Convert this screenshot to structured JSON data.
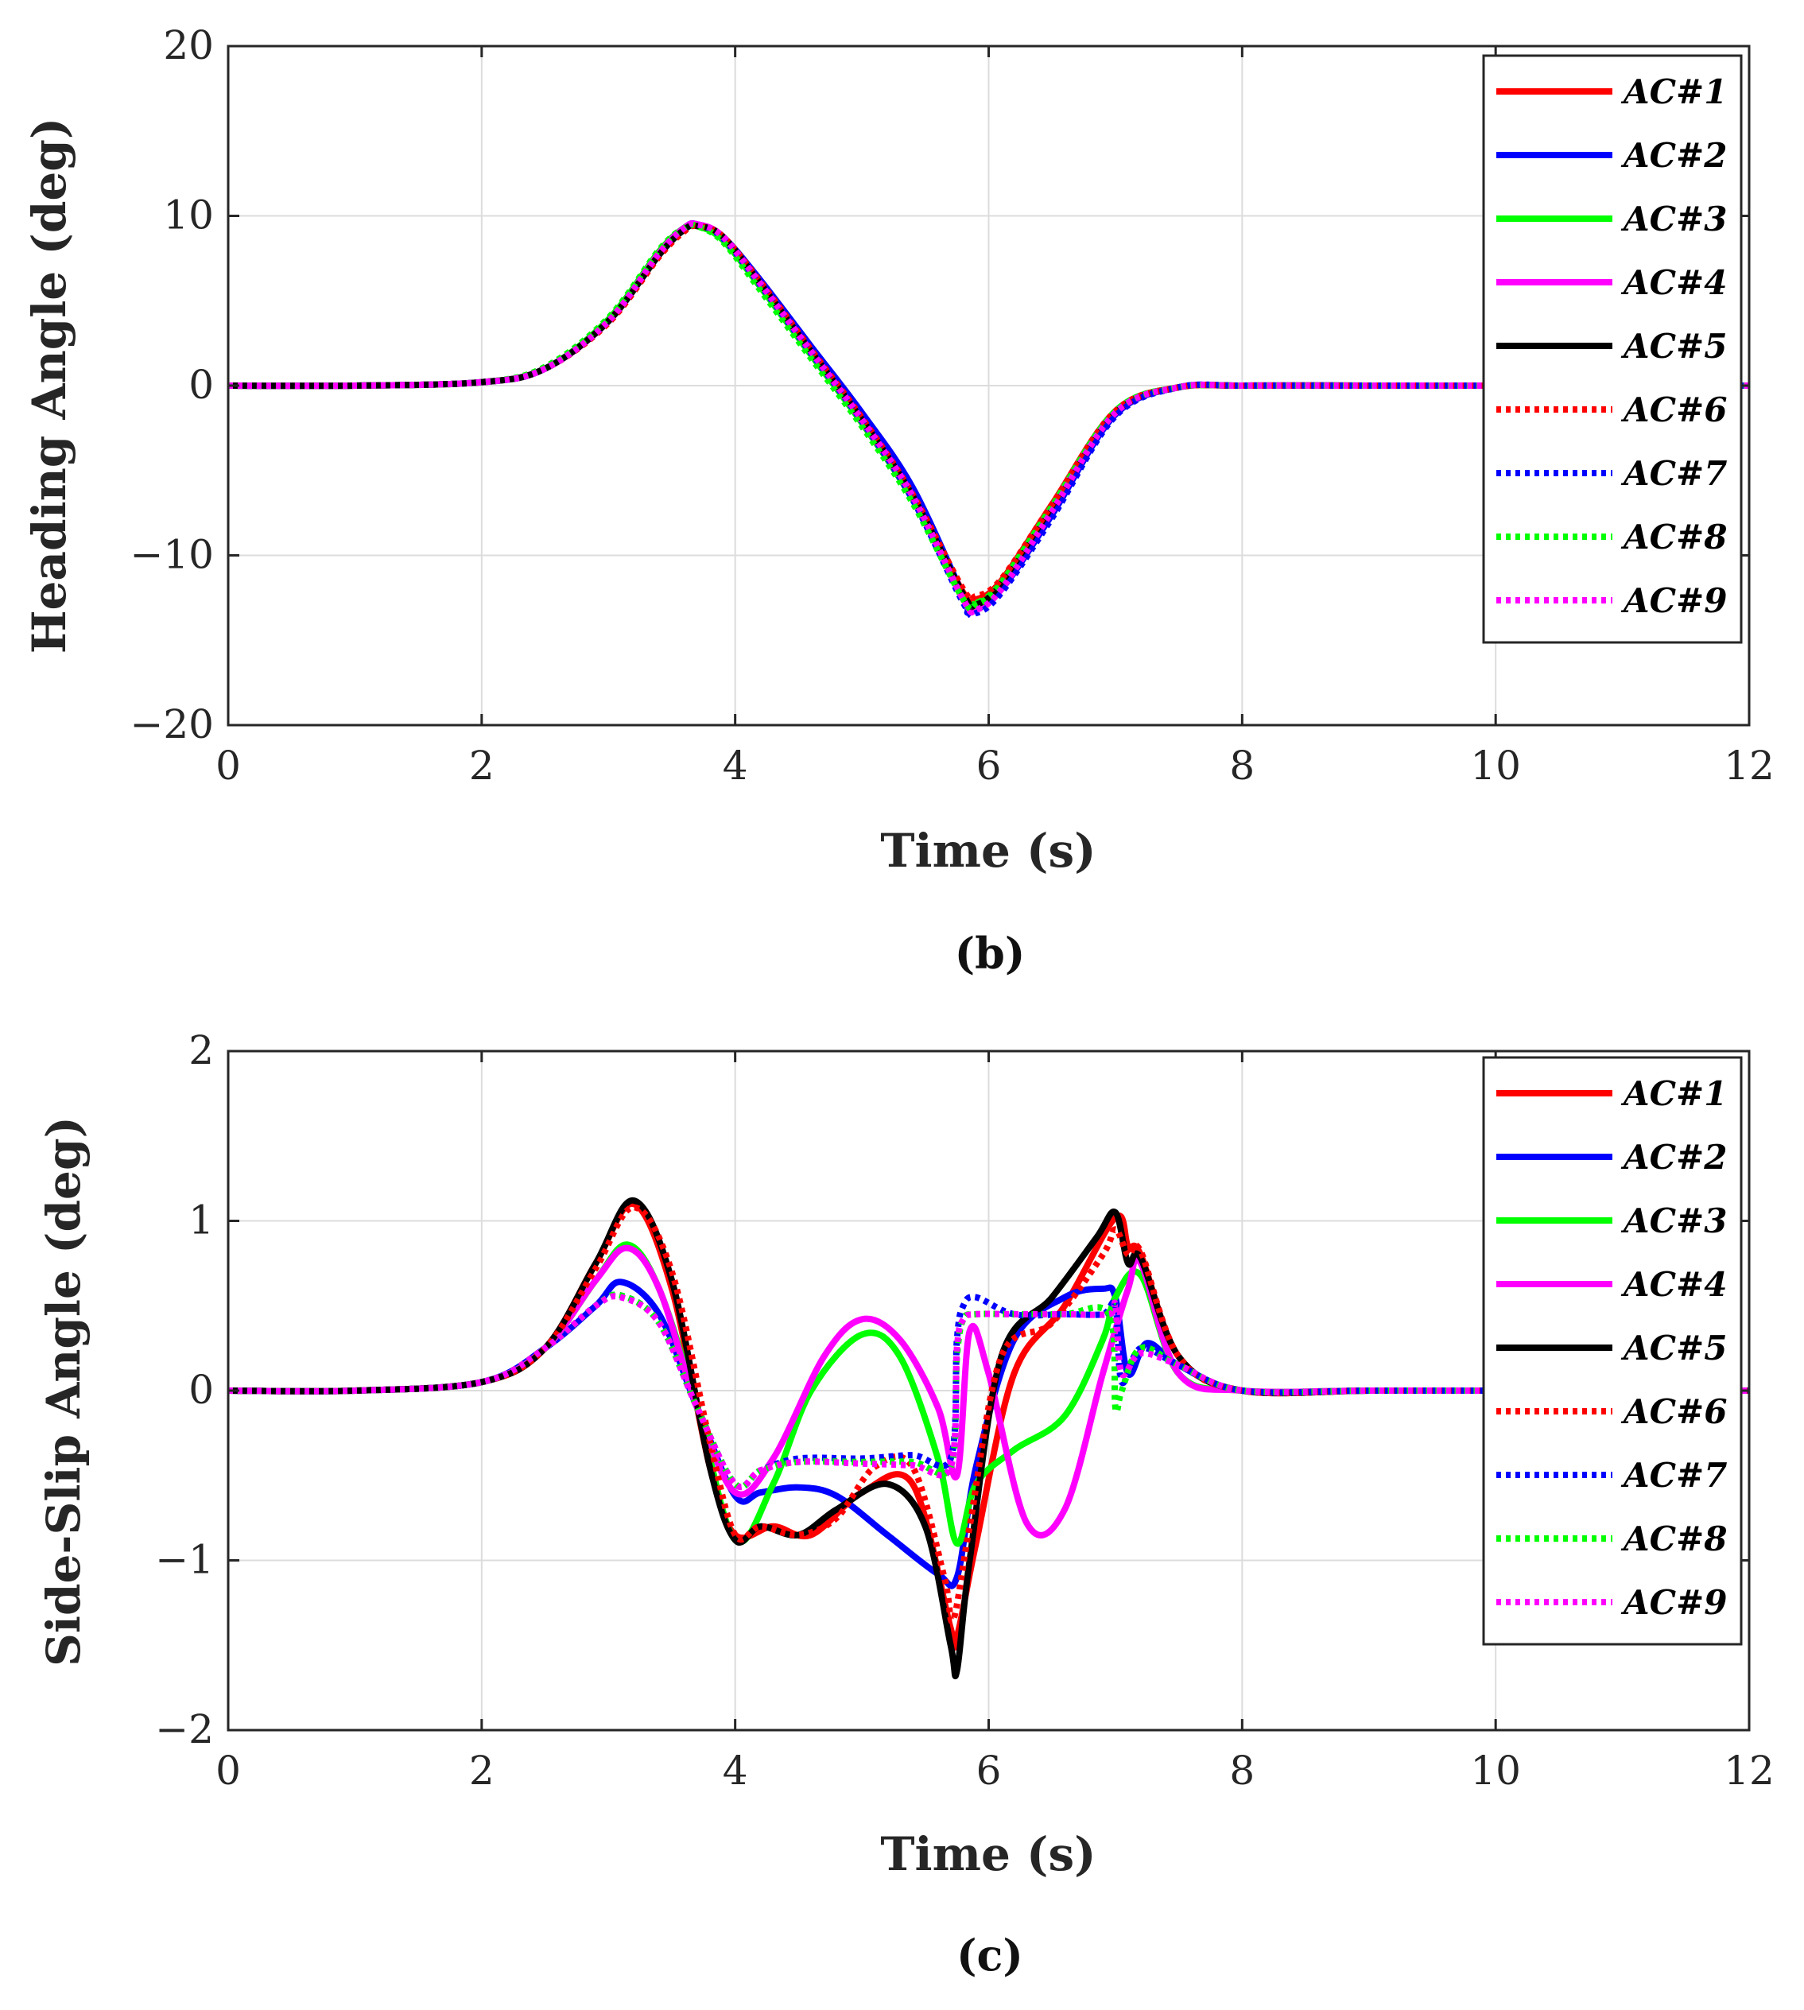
{
  "chart_data": [
    {
      "type": "line",
      "panel_label": "(b)",
      "xlabel": "Time (s)",
      "ylabel": "Heading Angle (deg)",
      "xlim": [
        0,
        12
      ],
      "ylim": [
        -20,
        20
      ],
      "xticks": [
        0,
        2,
        4,
        6,
        8,
        10,
        12
      ],
      "yticks": [
        -20,
        -10,
        0,
        10,
        20
      ],
      "xtick_labels": [
        "0",
        "2",
        "4",
        "6",
        "8",
        "10",
        "12"
      ],
      "ytick_labels": [
        "−20",
        "−10",
        "0",
        "10",
        "20"
      ],
      "grid": true,
      "legend_position": "top-right",
      "series": [
        {
          "name": "AC#1",
          "color": "#ff0000",
          "style": "solid",
          "x": [
            0,
            1,
            2,
            2.5,
            3,
            3.4,
            3.6,
            3.7,
            3.9,
            4.2,
            4.6,
            5,
            5.4,
            5.8,
            5.9,
            6.1,
            6.5,
            7,
            7.5,
            8,
            9,
            10,
            12
          ],
          "y": [
            0,
            0,
            0.2,
            1,
            3.8,
            7.8,
            9.3,
            9.5,
            8.8,
            6,
            2,
            -2,
            -6.5,
            -12.2,
            -12.6,
            -11.5,
            -7,
            -1.5,
            -0.1,
            0,
            0,
            0,
            0
          ]
        },
        {
          "name": "AC#2",
          "color": "#0000ff",
          "style": "solid",
          "x": [
            0,
            1,
            2,
            2.5,
            3,
            3.4,
            3.6,
            3.7,
            3.9,
            4.2,
            4.6,
            5,
            5.4,
            5.8,
            5.85,
            6.1,
            6.5,
            7,
            7.5,
            8,
            9,
            10,
            12
          ],
          "y": [
            0,
            0,
            0.2,
            1,
            3.8,
            7.8,
            9.3,
            9.5,
            8.8,
            6.2,
            2.3,
            -1.6,
            -6,
            -12.4,
            -13.3,
            -12,
            -7.6,
            -1.7,
            -0.1,
            0,
            0,
            0,
            0
          ]
        },
        {
          "name": "AC#3",
          "color": "#00ff00",
          "style": "solid",
          "x": [
            0,
            1,
            2,
            2.5,
            3,
            3.4,
            3.6,
            3.7,
            3.9,
            4.2,
            4.6,
            5,
            5.4,
            5.8,
            5.9,
            6.1,
            6.5,
            7,
            7.5,
            8,
            9,
            10,
            12
          ],
          "y": [
            0,
            0,
            0.2,
            1,
            3.9,
            7.9,
            9.3,
            9.4,
            8.6,
            5.8,
            1.8,
            -2.2,
            -6.7,
            -12.4,
            -12.8,
            -11.6,
            -7.1,
            -1.5,
            -0.1,
            0,
            0,
            0,
            0
          ]
        },
        {
          "name": "AC#4",
          "color": "#ff00ff",
          "style": "solid",
          "x": [
            0,
            1,
            2,
            2.5,
            3,
            3.4,
            3.6,
            3.7,
            3.9,
            4.2,
            4.6,
            5,
            5.4,
            5.8,
            5.9,
            6.1,
            6.5,
            7,
            7.5,
            8,
            9,
            10,
            12
          ],
          "y": [
            0,
            0,
            0.2,
            1,
            3.8,
            7.8,
            9.3,
            9.5,
            8.8,
            6,
            2,
            -2.1,
            -6.6,
            -12.6,
            -13.1,
            -11.9,
            -7.2,
            -1.6,
            -0.1,
            0,
            0,
            0,
            0
          ]
        },
        {
          "name": "AC#5",
          "color": "#000000",
          "style": "solid",
          "x": [
            0,
            1,
            2,
            2.5,
            3,
            3.4,
            3.6,
            3.7,
            3.9,
            4.2,
            4.6,
            5,
            5.4,
            5.8,
            5.9,
            6.1,
            6.5,
            7,
            7.5,
            8,
            9,
            10,
            12
          ],
          "y": [
            0,
            0,
            0.2,
            1,
            3.8,
            7.7,
            9.2,
            9.4,
            8.8,
            6,
            2,
            -2,
            -6.5,
            -12.3,
            -12.9,
            -11.7,
            -7.3,
            -1.6,
            -0.1,
            0,
            0,
            0,
            0
          ]
        },
        {
          "name": "AC#6",
          "color": "#ff0000",
          "style": "dotted",
          "x": [
            0,
            1,
            2,
            2.5,
            3,
            3.4,
            3.6,
            3.7,
            3.9,
            4.2,
            4.6,
            5,
            5.4,
            5.8,
            5.9,
            6.1,
            6.5,
            7,
            7.5,
            8,
            9,
            10,
            12
          ],
          "y": [
            0,
            0,
            0.2,
            1,
            3.7,
            7.6,
            9.1,
            9.4,
            8.8,
            6.1,
            2.1,
            -1.9,
            -6.4,
            -12,
            -12.4,
            -11.4,
            -7,
            -1.5,
            -0.1,
            0,
            0,
            0,
            0
          ]
        },
        {
          "name": "AC#7",
          "color": "#0000ff",
          "style": "dotted",
          "x": [
            0,
            1,
            2,
            2.5,
            3,
            3.4,
            3.6,
            3.7,
            3.9,
            4.2,
            4.6,
            5,
            5.4,
            5.8,
            5.9,
            6.1,
            6.5,
            7,
            7.5,
            8,
            9,
            10,
            12
          ],
          "y": [
            0,
            0,
            0.2,
            1,
            3.8,
            7.8,
            9.3,
            9.5,
            8.7,
            5.9,
            1.9,
            -2.1,
            -6.7,
            -12.8,
            -13.4,
            -12.2,
            -7.8,
            -1.8,
            -0.1,
            0,
            0,
            0,
            0
          ]
        },
        {
          "name": "AC#8",
          "color": "#00ff00",
          "style": "dotted",
          "x": [
            0,
            1,
            2,
            2.5,
            3,
            3.4,
            3.6,
            3.7,
            3.9,
            4.2,
            4.6,
            5,
            5.4,
            5.8,
            5.9,
            6.1,
            6.5,
            7,
            7.5,
            8,
            9,
            10,
            12
          ],
          "y": [
            0,
            0,
            0.2,
            1.1,
            4,
            8,
            9.3,
            9.4,
            8.5,
            5.6,
            1.6,
            -2.4,
            -6.9,
            -12.6,
            -12.9,
            -11.7,
            -7.2,
            -1.5,
            -0.1,
            0,
            0,
            0,
            0
          ]
        },
        {
          "name": "AC#9",
          "color": "#ff00ff",
          "style": "dotted",
          "x": [
            0,
            1,
            2,
            2.5,
            3,
            3.4,
            3.6,
            3.7,
            3.9,
            4.2,
            4.6,
            5,
            5.4,
            5.8,
            5.9,
            6.1,
            6.5,
            7,
            7.5,
            8,
            9,
            10,
            12
          ],
          "y": [
            0,
            0,
            0.2,
            1,
            3.8,
            7.8,
            9.3,
            9.5,
            8.8,
            6,
            2,
            -2,
            -6.5,
            -12.6,
            -13.2,
            -12,
            -7.4,
            -1.6,
            -0.1,
            0,
            0,
            0,
            0
          ]
        }
      ]
    },
    {
      "type": "line",
      "panel_label": "(c)",
      "xlabel": "Time (s)",
      "ylabel": "Side-Slip Angle (deg)",
      "xlim": [
        0,
        12
      ],
      "ylim": [
        -2,
        2
      ],
      "xticks": [
        0,
        2,
        4,
        6,
        8,
        10,
        12
      ],
      "yticks": [
        -2,
        -1,
        0,
        1,
        2
      ],
      "xtick_labels": [
        "0",
        "2",
        "4",
        "6",
        "8",
        "10",
        "12"
      ],
      "ytick_labels": [
        "−2",
        "−1",
        "0",
        "1",
        "2"
      ],
      "grid": true,
      "legend_position": "top-right",
      "series": [
        {
          "name": "AC#1",
          "color": "#ff0000",
          "style": "solid",
          "x": [
            0,
            1,
            2,
            2.5,
            2.9,
            3.2,
            3.5,
            3.8,
            4.0,
            4.3,
            4.6,
            5.0,
            5.4,
            5.7,
            5.75,
            5.9,
            6.2,
            6.6,
            7.0,
            7.1,
            7.2,
            7.5,
            8,
            9,
            10,
            12
          ],
          "y": [
            0,
            0,
            0.05,
            0.25,
            0.75,
            1.1,
            0.6,
            -0.45,
            -0.85,
            -0.8,
            -0.85,
            -0.6,
            -0.55,
            -1.4,
            -1.45,
            -0.9,
            0.1,
            0.5,
            1.02,
            0.85,
            0.8,
            0.2,
            0,
            0,
            0,
            0
          ]
        },
        {
          "name": "AC#2",
          "color": "#0000ff",
          "style": "solid",
          "x": [
            0,
            1,
            2,
            2.5,
            2.9,
            3.1,
            3.4,
            3.7,
            4.0,
            4.2,
            4.5,
            4.8,
            5.2,
            5.6,
            5.75,
            5.9,
            6.2,
            6.6,
            6.9,
            7.0,
            7.1,
            7.25,
            7.5,
            8,
            9,
            10,
            12
          ],
          "y": [
            0,
            0,
            0.05,
            0.25,
            0.5,
            0.64,
            0.45,
            -0.1,
            -0.62,
            -0.6,
            -0.57,
            -0.62,
            -0.85,
            -1.08,
            -1.1,
            -0.45,
            0.3,
            0.55,
            0.6,
            0.55,
            0.1,
            0.28,
            0.15,
            0,
            0,
            0,
            0
          ]
        },
        {
          "name": "AC#3",
          "color": "#00ff00",
          "style": "solid",
          "x": [
            0,
            1,
            2,
            2.5,
            2.9,
            3.15,
            3.4,
            3.7,
            4.0,
            4.3,
            4.6,
            5.0,
            5.3,
            5.6,
            5.75,
            5.9,
            6.2,
            6.6,
            6.9,
            7.0,
            7.2,
            7.5,
            8,
            9,
            10,
            12
          ],
          "y": [
            0,
            0,
            0.05,
            0.25,
            0.65,
            0.86,
            0.6,
            -0.1,
            -0.88,
            -0.55,
            0.0,
            0.33,
            0.2,
            -0.4,
            -0.9,
            -0.55,
            -0.35,
            -0.15,
            0.3,
            0.55,
            0.68,
            0.1,
            0,
            0,
            0,
            0
          ]
        },
        {
          "name": "AC#4",
          "color": "#ff00ff",
          "style": "solid",
          "x": [
            0,
            1,
            2,
            2.5,
            2.9,
            3.15,
            3.4,
            3.7,
            4.0,
            4.3,
            4.7,
            5.0,
            5.3,
            5.6,
            5.75,
            5.85,
            6.0,
            6.3,
            6.6,
            6.9,
            7.1,
            7.2,
            7.5,
            8,
            9,
            10,
            12
          ],
          "y": [
            0,
            0,
            0.05,
            0.25,
            0.65,
            0.84,
            0.6,
            -0.1,
            -0.6,
            -0.4,
            0.2,
            0.42,
            0.3,
            -0.1,
            -0.5,
            0.35,
            0.1,
            -0.78,
            -0.7,
            0.1,
            0.6,
            0.75,
            0.1,
            0,
            0,
            0,
            0
          ]
        },
        {
          "name": "AC#5",
          "color": "#000000",
          "style": "solid",
          "x": [
            0,
            1,
            2,
            2.5,
            2.9,
            3.2,
            3.5,
            3.8,
            4.0,
            4.2,
            4.5,
            4.8,
            5.2,
            5.5,
            5.7,
            5.75,
            5.85,
            6.1,
            6.5,
            6.85,
            7.0,
            7.1,
            7.2,
            7.5,
            8,
            9,
            10,
            12
          ],
          "y": [
            0,
            0,
            0.05,
            0.25,
            0.75,
            1.12,
            0.65,
            -0.45,
            -0.88,
            -0.8,
            -0.85,
            -0.7,
            -0.55,
            -0.8,
            -1.5,
            -1.65,
            -1.0,
            0.2,
            0.55,
            0.9,
            1.05,
            0.75,
            0.78,
            0.2,
            0,
            0,
            0,
            0
          ]
        },
        {
          "name": "AC#6",
          "color": "#ff0000",
          "style": "dotted",
          "x": [
            0,
            1,
            2,
            2.5,
            2.9,
            3.2,
            3.5,
            3.8,
            4.0,
            4.2,
            4.5,
            4.8,
            5.1,
            5.4,
            5.65,
            5.72,
            5.85,
            6.1,
            6.5,
            6.9,
            7.0,
            7.1,
            7.2,
            7.5,
            8,
            9,
            10,
            12
          ],
          "y": [
            0,
            0,
            0.05,
            0.25,
            0.72,
            1.08,
            0.7,
            -0.3,
            -0.85,
            -0.8,
            -0.85,
            -0.75,
            -0.45,
            -0.45,
            -1.1,
            -1.35,
            -0.8,
            0.2,
            0.4,
            0.8,
            0.95,
            0.8,
            0.82,
            0.2,
            0,
            0,
            0,
            0
          ]
        },
        {
          "name": "AC#7",
          "color": "#0000ff",
          "style": "dotted",
          "x": [
            0,
            1,
            2,
            2.5,
            2.9,
            3.1,
            3.4,
            3.7,
            4.0,
            4.2,
            4.5,
            5.0,
            5.4,
            5.7,
            5.75,
            5.8,
            5.9,
            6.2,
            6.6,
            6.9,
            7.0,
            7.05,
            7.2,
            7.5,
            8,
            9,
            10,
            12
          ],
          "y": [
            0,
            0,
            0.05,
            0.25,
            0.5,
            0.56,
            0.4,
            -0.1,
            -0.55,
            -0.47,
            -0.4,
            -0.4,
            -0.38,
            -0.4,
            0.3,
            0.5,
            0.55,
            0.45,
            0.45,
            0.45,
            0.5,
            0.05,
            0.25,
            0.15,
            0,
            0,
            0,
            0
          ]
        },
        {
          "name": "AC#8",
          "color": "#00ff00",
          "style": "dotted",
          "x": [
            0,
            1,
            2,
            2.5,
            2.9,
            3.1,
            3.4,
            3.7,
            4.0,
            4.2,
            4.5,
            5.0,
            5.4,
            5.7,
            5.75,
            5.8,
            5.9,
            6.2,
            6.6,
            6.95,
            7.0,
            7.05,
            7.2,
            7.5,
            8,
            9,
            10,
            12
          ],
          "y": [
            0,
            0,
            0.05,
            0.25,
            0.5,
            0.56,
            0.4,
            -0.1,
            -0.55,
            -0.47,
            -0.42,
            -0.42,
            -0.42,
            -0.45,
            0.2,
            0.42,
            0.45,
            0.45,
            0.45,
            0.45,
            -0.1,
            0.0,
            0.25,
            0.15,
            0,
            0,
            0,
            0
          ]
        },
        {
          "name": "AC#9",
          "color": "#ff00ff",
          "style": "dotted",
          "x": [
            0,
            1,
            2,
            2.5,
            2.9,
            3.1,
            3.4,
            3.7,
            4.0,
            4.2,
            4.5,
            5.0,
            5.4,
            5.7,
            5.75,
            5.8,
            5.9,
            6.2,
            6.6,
            6.95,
            7.0,
            7.05,
            7.2,
            7.5,
            8,
            9,
            10,
            12
          ],
          "y": [
            0,
            0,
            0.05,
            0.25,
            0.5,
            0.55,
            0.4,
            -0.1,
            -0.55,
            -0.47,
            -0.42,
            -0.43,
            -0.44,
            -0.45,
            0.25,
            0.42,
            0.45,
            0.45,
            0.45,
            0.45,
            0.5,
            0.1,
            0.22,
            0.15,
            0,
            0,
            0,
            0
          ]
        }
      ]
    }
  ]
}
